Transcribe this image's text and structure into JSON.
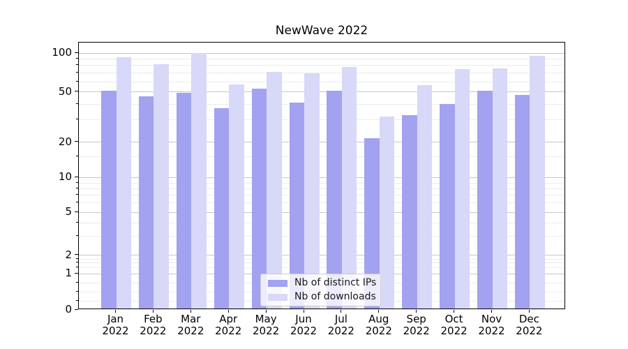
{
  "title": "NewWave 2022",
  "chart_data": {
    "type": "bar",
    "title": "NewWave 2022",
    "categories": [
      "Jan 2022",
      "Feb 2022",
      "Mar 2022",
      "Apr 2022",
      "May 2022",
      "Jun 2022",
      "Jul 2022",
      "Aug 2022",
      "Sep 2022",
      "Oct 2022",
      "Nov 2022",
      "Dec 2022"
    ],
    "series": [
      {
        "name": "Nb of distinct IPs",
        "color": "#a2a2f0",
        "values": [
          50,
          45,
          48,
          36,
          52,
          40,
          50,
          21,
          32,
          39,
          50,
          46
        ]
      },
      {
        "name": "Nb of downloads",
        "color": "#d8d8f8",
        "values": [
          91,
          80,
          97,
          56,
          70,
          68,
          76,
          31,
          55,
          73,
          74,
          93
        ]
      }
    ],
    "xlabel": "",
    "ylabel": "",
    "yscale": "symlog-like (logarithmic above 1, linear 0 to 1)",
    "ylim": [
      0,
      120
    ],
    "y_major_ticks": [
      0,
      1,
      2,
      5,
      10,
      20,
      50,
      100
    ],
    "y_minor_ticks": [
      0.25,
      0.5,
      0.75,
      1.25,
      1.5,
      1.75,
      3,
      4,
      6,
      7,
      8,
      9,
      15,
      30,
      40,
      60,
      70,
      80,
      90
    ],
    "grid": "horizontal major and minor gridlines",
    "legend_position": "lower center"
  }
}
